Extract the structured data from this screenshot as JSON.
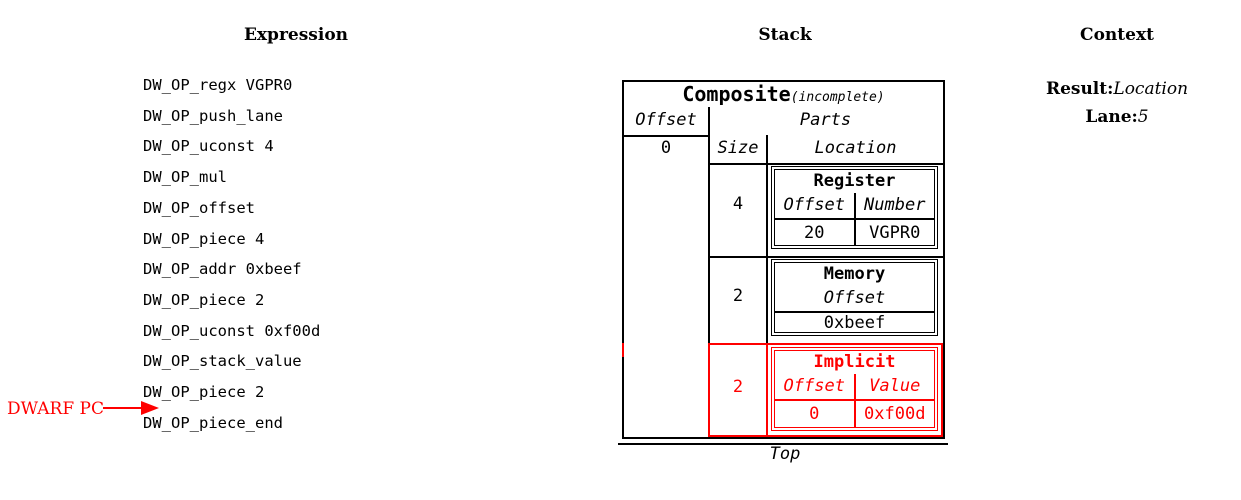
{
  "titles": {
    "expression": "Expression",
    "stack": "Stack",
    "context": "Context"
  },
  "expression": {
    "items": [
      "DW_OP_regx VGPR0",
      "DW_OP_push_lane",
      "DW_OP_uconst 4",
      "DW_OP_mul",
      "DW_OP_offset",
      "DW_OP_piece 4",
      "DW_OP_addr 0xbeef",
      "DW_OP_piece 2",
      "DW_OP_uconst 0xf00d",
      "DW_OP_stack_value",
      "DW_OP_piece 2",
      "DW_OP_piece_end"
    ],
    "pc_label": "DWARF PC"
  },
  "stack": {
    "composite": {
      "title": "Composite",
      "qualifier": "(incomplete)"
    },
    "columns": {
      "offset": "Offset",
      "parts": "Parts",
      "size": "Size",
      "location": "Location"
    },
    "offset_value": "0",
    "parts": [
      {
        "size": "4",
        "kind": "Register",
        "fields": [
          "Offset",
          "Number"
        ],
        "values": [
          "20",
          "VGPR0"
        ],
        "highlight": false
      },
      {
        "size": "2",
        "kind": "Memory",
        "fields": [
          "Offset"
        ],
        "values": [
          "0xbeef"
        ],
        "highlight": false
      },
      {
        "size": "2",
        "kind": "Implicit",
        "fields": [
          "Offset",
          "Value"
        ],
        "values": [
          "0",
          "0xf00d"
        ],
        "highlight": true
      }
    ],
    "top_label": "Top"
  },
  "context": {
    "result_label": "Result:",
    "result_value": "Location",
    "lane_label": "Lane:",
    "lane_value": "5"
  },
  "colors": {
    "highlight": "#ff0000",
    "text": "#000000"
  }
}
